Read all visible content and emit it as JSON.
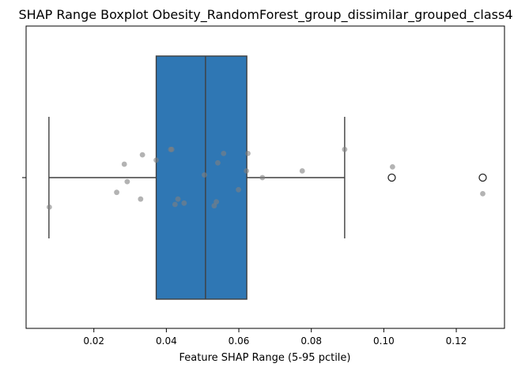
{
  "chart_data": {
    "type": "boxplot",
    "title": "SHAP Range Boxplot Obesity_RandomForest_group_dissimilar_grouped_class4",
    "xlabel": "Feature SHAP Range (5-95 pctile)",
    "ylabel": "",
    "orientation": "horizontal",
    "xlim": [
      0.0013,
      0.1333
    ],
    "xticks": [
      0.02,
      0.04,
      0.06,
      0.08,
      0.1,
      0.12
    ],
    "xtick_labels": [
      "0.02",
      "0.04",
      "0.06",
      "0.08",
      "0.10",
      "0.12"
    ],
    "box": {
      "q1": 0.0372,
      "median": 0.0508,
      "q3": 0.0622,
      "whisker_low": 0.0076,
      "whisker_high": 0.0892,
      "color": "#2f77b4",
      "outliers": [
        0.1022,
        0.1273
      ]
    },
    "points": [
      {
        "x": 0.0077,
        "y": -0.22
      },
      {
        "x": 0.0263,
        "y": -0.11
      },
      {
        "x": 0.0329,
        "y": -0.16
      },
      {
        "x": 0.0292,
        "y": -0.03
      },
      {
        "x": 0.0284,
        "y": 0.1
      },
      {
        "x": 0.0334,
        "y": 0.17
      },
      {
        "x": 0.0372,
        "y": 0.13
      },
      {
        "x": 0.0412,
        "y": 0.21
      },
      {
        "x": 0.0415,
        "y": 0.21
      },
      {
        "x": 0.0424,
        "y": -0.2
      },
      {
        "x": 0.0432,
        "y": -0.16
      },
      {
        "x": 0.0449,
        "y": -0.19
      },
      {
        "x": 0.0505,
        "y": 0.02
      },
      {
        "x": 0.0532,
        "y": -0.21
      },
      {
        "x": 0.0538,
        "y": -0.18
      },
      {
        "x": 0.0542,
        "y": 0.11
      },
      {
        "x": 0.0558,
        "y": 0.18
      },
      {
        "x": 0.0599,
        "y": -0.09
      },
      {
        "x": 0.0621,
        "y": 0.05
      },
      {
        "x": 0.0625,
        "y": 0.18
      },
      {
        "x": 0.0665,
        "y": 0.0
      },
      {
        "x": 0.0775,
        "y": 0.05
      },
      {
        "x": 0.0892,
        "y": 0.21
      },
      {
        "x": 0.1024,
        "y": 0.08
      },
      {
        "x": 0.1273,
        "y": -0.12
      }
    ],
    "point_color": "#808080",
    "grid": false,
    "legend": "none"
  }
}
